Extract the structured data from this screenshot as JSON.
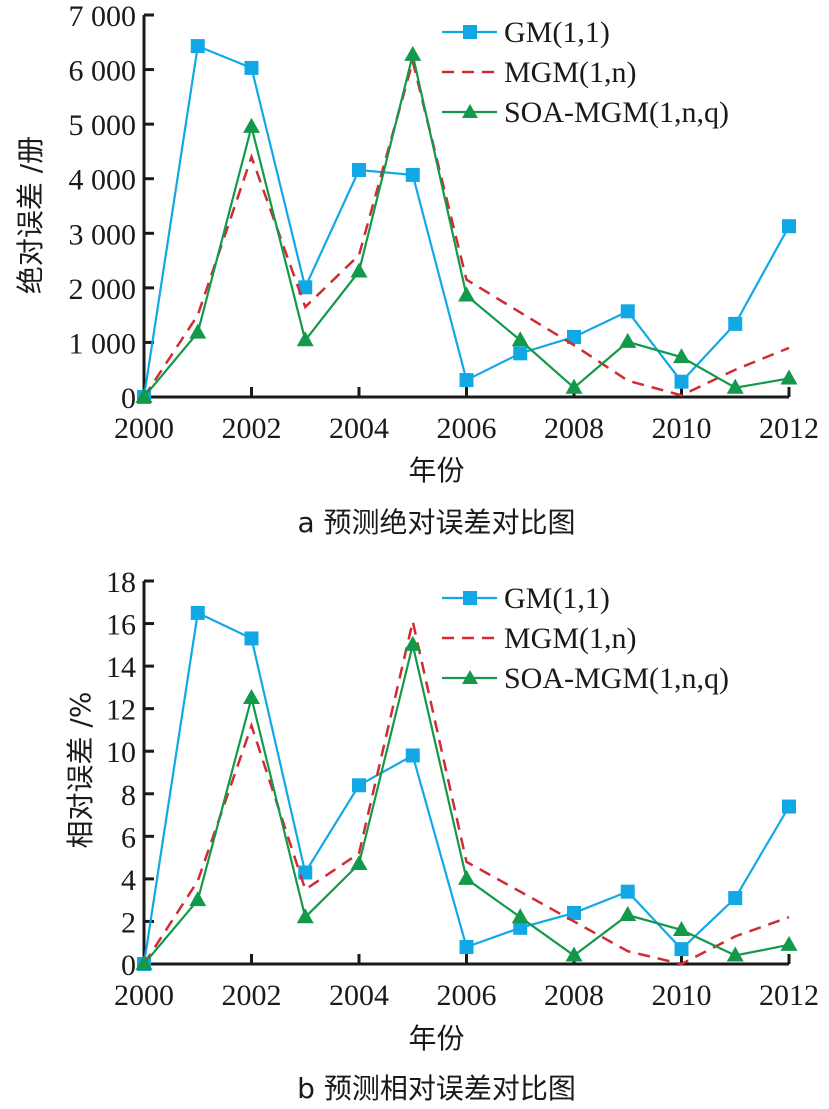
{
  "chart_data": [
    {
      "type": "line",
      "id": "a",
      "caption": "a 预测绝对误差对比图",
      "xlabel": "年份",
      "ylabel": "绝对误差 /册",
      "x": [
        2000,
        2001,
        2002,
        2003,
        2004,
        2005,
        2006,
        2007,
        2008,
        2009,
        2010,
        2011,
        2012
      ],
      "x_ticks": [
        2000,
        2002,
        2004,
        2006,
        2008,
        2010,
        2012
      ],
      "x_tick_labels": [
        "2000",
        "2002",
        "2004",
        "2006",
        "2008",
        "2010",
        "2012"
      ],
      "xlim": [
        2000,
        2012
      ],
      "ylim": [
        0,
        7000
      ],
      "y_ticks": [
        0,
        1000,
        2000,
        3000,
        4000,
        5000,
        6000,
        7000
      ],
      "y_tick_labels": [
        "0",
        "1 000",
        "2 000",
        "3 000",
        "4 000",
        "5 000",
        "6 000",
        "7 000"
      ],
      "grid": false,
      "legend_position": "top-right",
      "series": [
        {
          "name": "GM(1,1)",
          "color": "#12a8e6",
          "style": "solid",
          "marker": "square",
          "values": [
            0,
            6430,
            6030,
            2010,
            4160,
            4070,
            310,
            800,
            1100,
            1570,
            280,
            1340,
            3130
          ]
        },
        {
          "name": "MGM(1,n)",
          "color": "#d22b33",
          "style": "dashed",
          "marker": "none",
          "values": [
            0,
            1500,
            4400,
            1650,
            2600,
            6150,
            2150,
            1550,
            950,
            300,
            30,
            500,
            900
          ]
        },
        {
          "name": "SOA-MGM(1,n,q)",
          "color": "#13994a",
          "style": "solid",
          "marker": "triangle",
          "values": [
            0,
            1180,
            4950,
            1040,
            2300,
            6270,
            1860,
            1040,
            170,
            1010,
            730,
            170,
            340
          ]
        }
      ]
    },
    {
      "type": "line",
      "id": "b",
      "caption": "b 预测相对误差对比图",
      "xlabel": "年份",
      "ylabel": "相对误差 /%",
      "x": [
        2000,
        2001,
        2002,
        2003,
        2004,
        2005,
        2006,
        2007,
        2008,
        2009,
        2010,
        2011,
        2012
      ],
      "x_ticks": [
        2000,
        2002,
        2004,
        2006,
        2008,
        2010,
        2012
      ],
      "x_tick_labels": [
        "2000",
        "2002",
        "2004",
        "2006",
        "2008",
        "2010",
        "2012"
      ],
      "xlim": [
        2000,
        2012
      ],
      "ylim": [
        0,
        18
      ],
      "y_ticks": [
        0,
        2,
        4,
        6,
        8,
        10,
        12,
        14,
        16,
        18
      ],
      "y_tick_labels": [
        "0",
        "2",
        "4",
        "6",
        "8",
        "10",
        "12",
        "14",
        "16",
        "18"
      ],
      "grid": false,
      "legend_position": "top-right",
      "series": [
        {
          "name": "GM(1,1)",
          "color": "#12a8e6",
          "style": "solid",
          "marker": "square",
          "values": [
            0,
            16.5,
            15.3,
            4.3,
            8.4,
            9.8,
            0.8,
            1.7,
            2.4,
            3.4,
            0.7,
            3.1,
            7.4
          ]
        },
        {
          "name": "MGM(1,n)",
          "color": "#d22b33",
          "style": "dashed",
          "marker": "none",
          "values": [
            0,
            3.9,
            11.2,
            3.5,
            5.2,
            16.1,
            4.8,
            3.4,
            2.0,
            0.6,
            0.0,
            1.3,
            2.2
          ]
        },
        {
          "name": "SOA-MGM(1,n,q)",
          "color": "#13994a",
          "style": "solid",
          "marker": "triangle",
          "values": [
            0,
            3.0,
            12.5,
            2.2,
            4.7,
            15.0,
            4.0,
            2.2,
            0.4,
            2.3,
            1.6,
            0.4,
            0.9
          ]
        }
      ]
    }
  ]
}
